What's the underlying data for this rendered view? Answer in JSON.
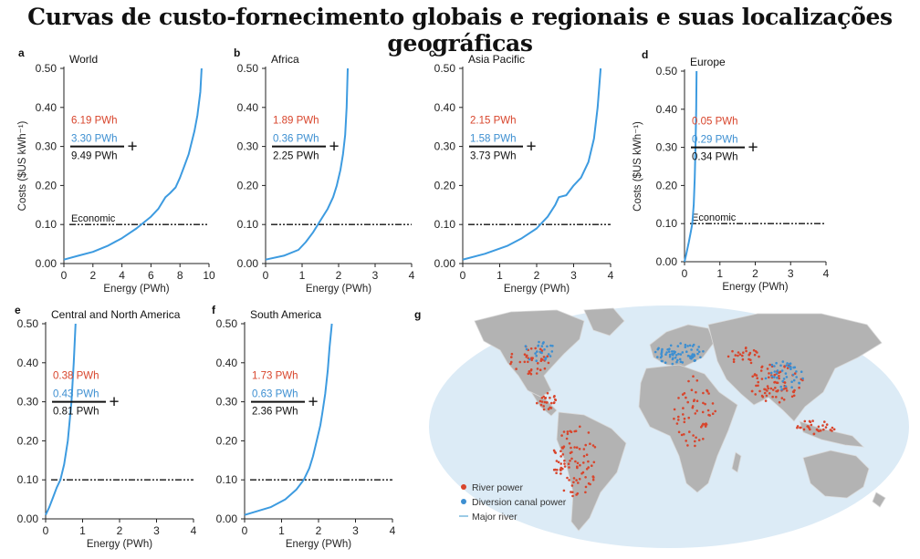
{
  "title": "Curvas de custo-fornecimento globais e regionais e suas localizações geográficas",
  "colors": {
    "curve": "#3d9be0",
    "red": "#d8452c",
    "blue": "#3d8fd1",
    "ocean": "#dcebf6",
    "land": "#b3b3b3"
  },
  "chart_data": [
    {
      "id": "a",
      "type": "line",
      "title": "World",
      "xlabel": "Energy (PWh)",
      "ylabel": "Costs ($US kWh⁻¹)",
      "xlim": [
        0,
        10
      ],
      "ylim": [
        0,
        0.5
      ],
      "xticks": [
        "0",
        "2",
        "4",
        "6",
        "8",
        "10"
      ],
      "yticks": [
        "0.00",
        "0.10",
        "0.20",
        "0.30",
        "0.40",
        "0.50"
      ],
      "economic_label": "Economic",
      "economic_y": 0.1,
      "values_text": [
        "6.19 PWh",
        "3.30 PWh",
        "9.49 PWh"
      ],
      "series": [
        {
          "x": [
            0,
            1,
            2,
            3,
            4,
            5,
            6,
            6.5,
            7,
            7.3,
            7.7,
            8,
            8.3,
            8.6,
            9,
            9.2,
            9.4,
            9.49
          ],
          "y": [
            0.01,
            0.02,
            0.03,
            0.045,
            0.065,
            0.09,
            0.12,
            0.14,
            0.17,
            0.18,
            0.195,
            0.22,
            0.25,
            0.28,
            0.34,
            0.38,
            0.44,
            0.5
          ]
        }
      ]
    },
    {
      "id": "b",
      "type": "line",
      "title": "Africa",
      "xlabel": "Energy (PWh)",
      "ylabel": "",
      "xlim": [
        0,
        4
      ],
      "ylim": [
        0,
        0.5
      ],
      "xticks": [
        "0",
        "1",
        "2",
        "3",
        "4"
      ],
      "yticks": [
        "0.00",
        "0.10",
        "0.20",
        "0.30",
        "0.40",
        "0.50"
      ],
      "economic_label": "",
      "economic_y": 0.1,
      "values_text": [
        "1.89 PWh",
        "0.36 PWh",
        "2.25 PWh"
      ],
      "series": [
        {
          "x": [
            0,
            0.5,
            0.9,
            1.1,
            1.3,
            1.5,
            1.7,
            1.85,
            1.95,
            2.05,
            2.12,
            2.18,
            2.22,
            2.25
          ],
          "y": [
            0.01,
            0.02,
            0.035,
            0.055,
            0.08,
            0.11,
            0.14,
            0.17,
            0.2,
            0.24,
            0.28,
            0.33,
            0.4,
            0.5
          ]
        }
      ]
    },
    {
      "id": "c",
      "type": "line",
      "title": "Asia Pacific",
      "xlabel": "Energy (PWh)",
      "ylabel": "",
      "xlim": [
        0,
        4
      ],
      "ylim": [
        0,
        0.5
      ],
      "xticks": [
        "0",
        "1",
        "2",
        "3",
        "4"
      ],
      "yticks": [
        "0.00",
        "0.10",
        "0.20",
        "0.30",
        "0.40",
        "0.50"
      ],
      "economic_label": "",
      "economic_y": 0.1,
      "values_text": [
        "2.15 PWh",
        "1.58 PWh",
        "3.73 PWh"
      ],
      "series": [
        {
          "x": [
            0,
            0.6,
            1.2,
            1.6,
            2.0,
            2.3,
            2.5,
            2.6,
            2.8,
            3.0,
            3.2,
            3.4,
            3.55,
            3.65,
            3.73
          ],
          "y": [
            0.01,
            0.025,
            0.045,
            0.065,
            0.09,
            0.12,
            0.15,
            0.17,
            0.175,
            0.2,
            0.22,
            0.26,
            0.32,
            0.4,
            0.5
          ]
        }
      ]
    },
    {
      "id": "d",
      "type": "line",
      "title": "Europe",
      "xlabel": "Energy (PWh)",
      "ylabel": "Costs ($US kWh⁻¹)",
      "xlim": [
        0,
        4
      ],
      "ylim": [
        0,
        0.5
      ],
      "xticks": [
        "0",
        "1",
        "2",
        "3",
        "4"
      ],
      "yticks": [
        "0.00",
        "0.10",
        "0.20",
        "0.30",
        "0.40",
        "0.50"
      ],
      "economic_label": "Economic",
      "economic_y": 0.1,
      "values_text": [
        "0.05 PWh",
        "0.29 PWh",
        "0.34 PWh"
      ],
      "series": [
        {
          "x": [
            0,
            0.05,
            0.12,
            0.18,
            0.22,
            0.26,
            0.29,
            0.31,
            0.33,
            0.34
          ],
          "y": [
            0.0,
            0.02,
            0.05,
            0.08,
            0.1,
            0.15,
            0.22,
            0.3,
            0.4,
            0.5
          ]
        }
      ]
    },
    {
      "id": "e",
      "type": "line",
      "title": "Central and North America",
      "xlabel": "Energy (PWh)",
      "ylabel": "",
      "xlim": [
        0,
        4
      ],
      "ylim": [
        0,
        0.5
      ],
      "xticks": [
        "0",
        "1",
        "2",
        "3",
        "4"
      ],
      "yticks": [
        "0.00",
        "0.10",
        "0.20",
        "0.30",
        "0.40",
        "0.50"
      ],
      "economic_label": "",
      "economic_y": 0.1,
      "values_text": [
        "0.38 PWh",
        "0.43 PWh",
        "0.81 PWh"
      ],
      "series": [
        {
          "x": [
            0,
            0.1,
            0.2,
            0.3,
            0.4,
            0.5,
            0.6,
            0.7,
            0.76,
            0.81
          ],
          "y": [
            0.01,
            0.03,
            0.055,
            0.08,
            0.1,
            0.14,
            0.2,
            0.3,
            0.4,
            0.5
          ]
        }
      ]
    },
    {
      "id": "f",
      "type": "line",
      "title": "South America",
      "xlabel": "Energy (PWh)",
      "ylabel": "",
      "xlim": [
        0,
        4
      ],
      "ylim": [
        0,
        0.5
      ],
      "xticks": [
        "0",
        "1",
        "2",
        "3",
        "4"
      ],
      "yticks": [
        "0.00",
        "0.10",
        "0.20",
        "0.30",
        "0.40",
        "0.50"
      ],
      "economic_label": "",
      "economic_y": 0.1,
      "values_text": [
        "1.73 PWh",
        "0.63 PWh",
        "2.36 PWh"
      ],
      "series": [
        {
          "x": [
            0,
            0.7,
            1.1,
            1.4,
            1.6,
            1.75,
            1.85,
            1.95,
            2.05,
            2.1,
            2.18,
            2.25,
            2.3,
            2.36
          ],
          "y": [
            0.01,
            0.03,
            0.05,
            0.075,
            0.1,
            0.13,
            0.16,
            0.2,
            0.24,
            0.27,
            0.32,
            0.38,
            0.44,
            0.5
          ]
        }
      ]
    }
  ],
  "map": {
    "label": "g",
    "legend": [
      "River power",
      "Diversion canal power",
      "Major river"
    ]
  }
}
